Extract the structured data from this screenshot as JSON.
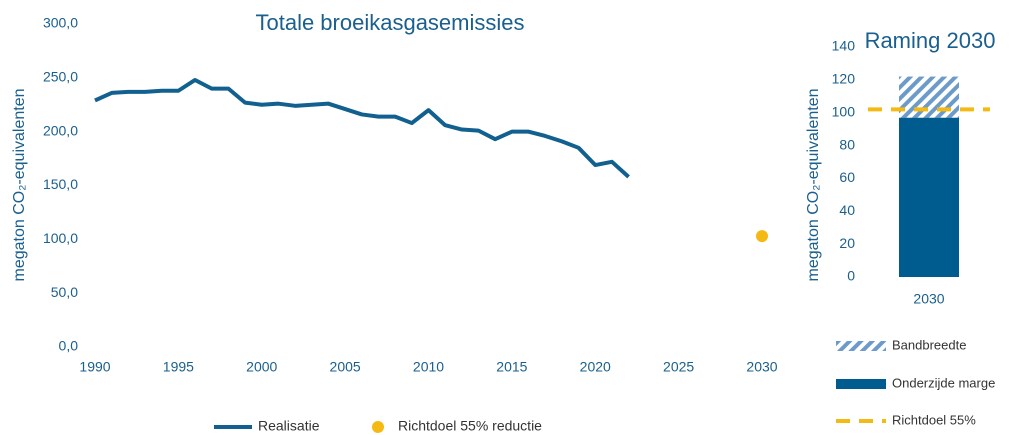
{
  "chart_data": [
    {
      "type": "line",
      "title": "Totale broeikasgasemissies",
      "ylabel": "megaton CO₂-equivalenten",
      "x": [
        1990,
        1991,
        1992,
        1993,
        1994,
        1995,
        1996,
        1997,
        1998,
        1999,
        2000,
        2001,
        2002,
        2003,
        2004,
        2005,
        2006,
        2007,
        2008,
        2009,
        2010,
        2011,
        2012,
        2013,
        2014,
        2015,
        2016,
        2017,
        2018,
        2019,
        2020,
        2021,
        2022
      ],
      "series": [
        {
          "name": "Realisatie",
          "color": "#11608f",
          "values": [
            229,
            236,
            237,
            237,
            238,
            238,
            248,
            240,
            240,
            227,
            225,
            226,
            224,
            225,
            226,
            221,
            216,
            214,
            214,
            208,
            220,
            206,
            202,
            201,
            193,
            200,
            200,
            196,
            191,
            185,
            169,
            172,
            158
          ]
        },
        {
          "name": "Richtdoel 55% reductie",
          "color": "#f5b914",
          "x": [
            2030
          ],
          "values": [
            103
          ]
        }
      ],
      "xlim": [
        1990,
        2030
      ],
      "xticks": [
        1990,
        1995,
        2000,
        2005,
        2010,
        2015,
        2020,
        2025,
        2030
      ],
      "ylim": [
        0,
        300
      ],
      "yticks": [
        {
          "value": 0,
          "label": "0,0"
        },
        {
          "value": 50,
          "label": "50,0"
        },
        {
          "value": 100,
          "label": "100,0"
        },
        {
          "value": 150,
          "label": "150,0"
        },
        {
          "value": 200,
          "label": "200,0"
        },
        {
          "value": 250,
          "label": "250,0"
        },
        {
          "value": 300,
          "label": "300,0"
        }
      ]
    },
    {
      "type": "bar",
      "title": "Raming 2030",
      "ylabel": "megaton CO₂-equivalenten",
      "categories": [
        "2030"
      ],
      "series": [
        {
          "name": "Onderzijde marge",
          "color": "#005b8f",
          "values": [
            97
          ]
        },
        {
          "name": "Bandbreedte",
          "color": "#6d9bc9",
          "hatch": true,
          "values": [
            25
          ]
        },
        {
          "name": "Richtdoel 55%",
          "color": "#f5b914",
          "dashed": true,
          "values": [
            102
          ]
        }
      ],
      "ylim": [
        0,
        140
      ],
      "yticks": [
        0,
        20,
        40,
        60,
        80,
        100,
        120,
        140
      ]
    }
  ]
}
